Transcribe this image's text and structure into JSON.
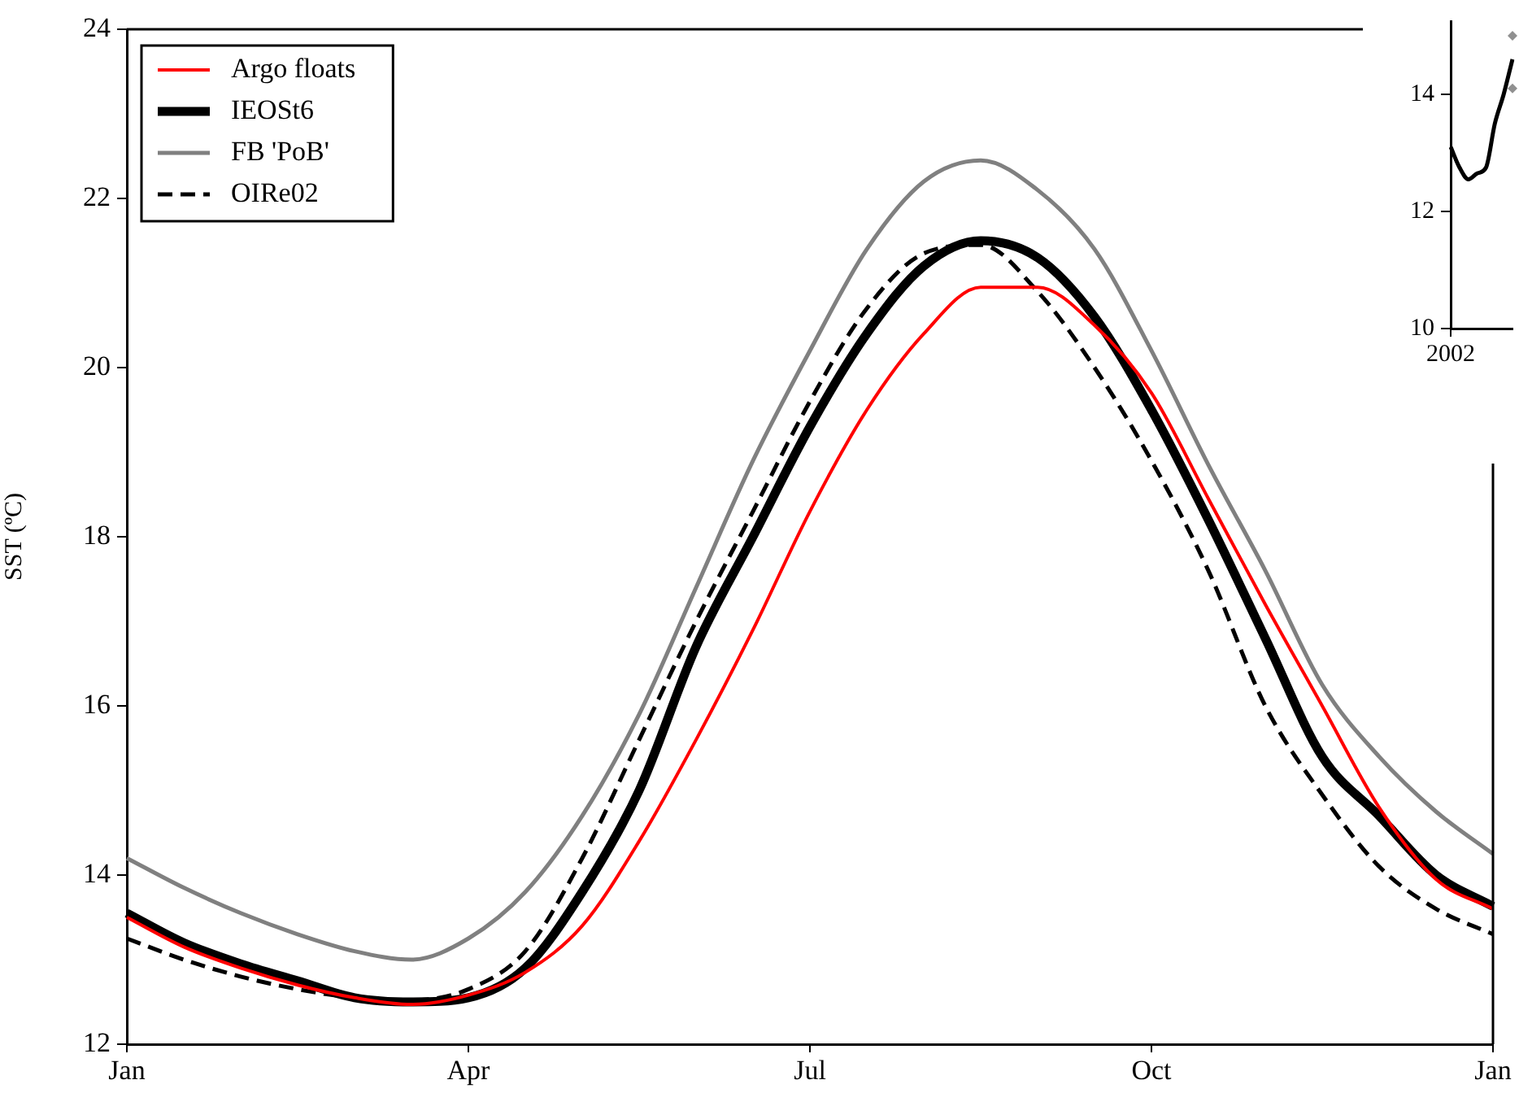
{
  "chart_data": [
    {
      "type": "line",
      "ylabel": "SST (ºC)",
      "ylim": [
        12,
        24
      ],
      "categories": [
        "Jan",
        null,
        null,
        null,
        null,
        null,
        "Apr",
        null,
        null,
        null,
        null,
        null,
        "Jul",
        null,
        null,
        null,
        null,
        null,
        "Oct",
        null,
        null,
        null,
        null,
        null,
        "Jan"
      ],
      "yticks": [
        12,
        14,
        16,
        18,
        20,
        22,
        24
      ],
      "grid": false,
      "legend": "top left",
      "marker": "none",
      "series": [
        {
          "name": "Argo floats",
          "color": "#ff0000",
          "line_style": "solid",
          "values": [
            13.5,
            13.15,
            12.9,
            12.7,
            12.55,
            12.47,
            12.58,
            12.85,
            13.4,
            14.4,
            15.6,
            16.9,
            18.3,
            19.5,
            20.4,
            20.95,
            20.95,
            20.5,
            19.7,
            18.45,
            17.2,
            16.0,
            14.8,
            13.95,
            13.6
          ]
        },
        {
          "name": "IEOSt6",
          "color": "#000000",
          "line_style": "solid",
          "values": [
            13.55,
            13.2,
            12.95,
            12.75,
            12.55,
            12.5,
            12.55,
            12.9,
            13.8,
            15.0,
            16.7,
            18.0,
            19.3,
            20.4,
            21.2,
            21.5,
            21.3,
            20.6,
            19.5,
            18.2,
            16.8,
            15.4,
            14.7,
            14.0,
            13.63
          ]
        },
        {
          "name": "FB 'PoB'",
          "color": "#808080",
          "line_style": "solid",
          "values": [
            14.2,
            13.85,
            13.55,
            13.3,
            13.1,
            13.0,
            13.25,
            13.8,
            14.7,
            15.9,
            17.4,
            18.9,
            20.2,
            21.4,
            22.2,
            22.45,
            22.1,
            21.4,
            20.2,
            18.85,
            17.6,
            16.25,
            15.4,
            14.75,
            14.25
          ]
        },
        {
          "name": "OIRe02",
          "color": "#000000",
          "line_style": "dashed",
          "values": [
            13.25,
            13.0,
            12.8,
            12.65,
            12.55,
            12.52,
            12.65,
            13.1,
            14.2,
            15.6,
            17.0,
            18.3,
            19.6,
            20.7,
            21.35,
            21.45,
            20.9,
            20.0,
            18.9,
            17.6,
            16.0,
            14.95,
            14.1,
            13.6,
            13.3
          ]
        }
      ]
    },
    {
      "type": "line",
      "ylim": [
        10,
        15.25
      ],
      "categories": [
        "2002",
        null,
        null,
        null,
        null,
        null,
        null,
        null
      ],
      "yticks": [
        10,
        12,
        14
      ],
      "grid": false,
      "series": [
        {
          "color": "#000000",
          "marker": "none",
          "values": [
            13.1,
            12.75,
            12.55,
            12.65,
            12.75,
            13.5,
            14.0,
            14.6
          ]
        },
        {
          "type": "scatter",
          "color": "#909090",
          "marker": "diamond",
          "values": [
            null,
            null,
            null,
            null,
            null,
            null,
            null,
            15.0
          ]
        },
        {
          "type": "scatter",
          "color": "#909090",
          "marker": "diamond",
          "values": [
            null,
            null,
            null,
            null,
            null,
            null,
            null,
            14.1
          ]
        }
      ]
    }
  ]
}
